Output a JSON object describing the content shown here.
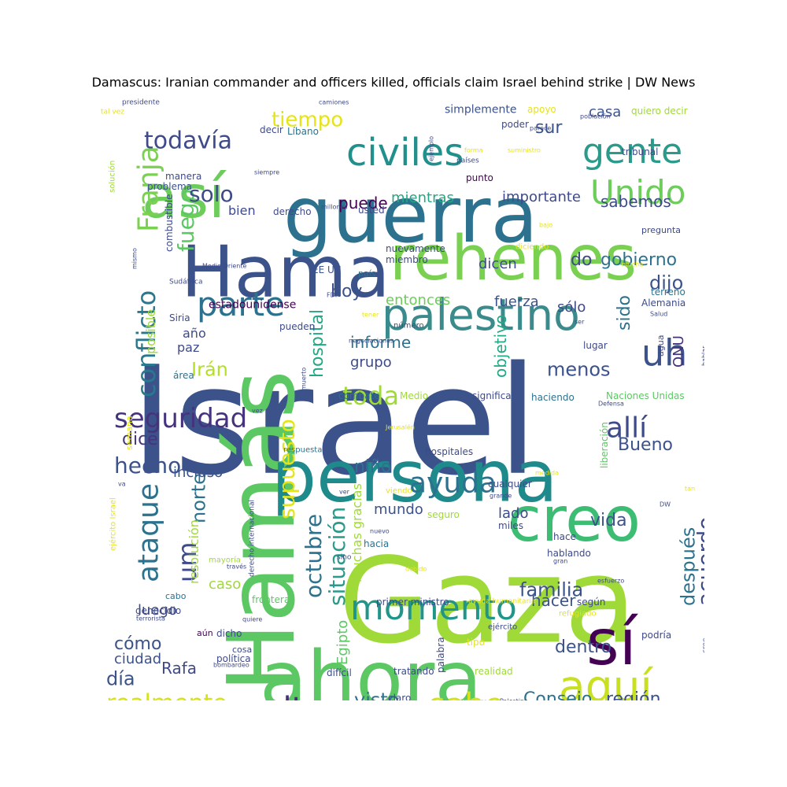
{
  "title": "Damascus: Iranian commander and officers killed, officials claim Israel behind strike | DW News",
  "palette": [
    "#440154",
    "#472c7a",
    "#3b528b",
    "#2c728e",
    "#21908d",
    "#27ad81",
    "#5cc863",
    "#aadc32",
    "#fde725"
  ],
  "words": [
    {
      "text": "Israel",
      "c": "#3b528b"
    },
    {
      "text": "Gaza",
      "c": "#a0da39"
    },
    {
      "text": "Hamás",
      "c": "#5cc863"
    },
    {
      "text": "ahora",
      "c": "#5cc863"
    },
    {
      "text": "guerra",
      "c": "#2c728e"
    },
    {
      "text": "Hama",
      "c": "#3b528b"
    },
    {
      "text": "rehenes",
      "c": "#7ad151"
    },
    {
      "text": "persona",
      "c": "#1f8a8b"
    },
    {
      "text": "así",
      "c": "#6ccd5a"
    },
    {
      "text": "creo",
      "c": "#3dbc74"
    },
    {
      "text": "sí",
      "c": "#440154"
    },
    {
      "text": "aquí",
      "c": "#c8e020"
    },
    {
      "text": "palestino",
      "c": "#3b8b8c"
    },
    {
      "text": "civiles",
      "c": "#21908d"
    },
    {
      "text": "gente",
      "c": "#2a9a8a"
    },
    {
      "text": "Unido",
      "c": "#6ccd5a"
    },
    {
      "text": "parte",
      "c": "#2c728e"
    },
    {
      "text": "momento",
      "c": "#22958a"
    },
    {
      "text": "Franja",
      "c": "#7ad151"
    },
    {
      "text": "todavía",
      "c": "#3e4a89"
    },
    {
      "text": "seguridad",
      "c": "#46337e"
    },
    {
      "text": "alto",
      "c": "#472c7a"
    },
    {
      "text": "sabe",
      "c": "#d5e21a"
    },
    {
      "text": "uh",
      "c": "#3b528b"
    },
    {
      "text": "allí",
      "c": "#3e4a89"
    },
    {
      "text": "ayuda",
      "c": "#2c728e"
    },
    {
      "text": "ataque",
      "c": "#2c728e"
    },
    {
      "text": "conflicto",
      "c": "#2a788e"
    },
    {
      "text": "toda",
      "c": "#a0da39"
    },
    {
      "text": "realmente",
      "c": "#d8e219"
    },
    {
      "text": "tiempo",
      "c": "#e5e419"
    },
    {
      "text": "fuego",
      "c": "#5cc863"
    },
    {
      "text": "solo",
      "c": "#3e4a89"
    },
    {
      "text": "hecho",
      "c": "#3b528b"
    },
    {
      "text": "um",
      "c": "#3e4a89"
    },
    {
      "text": "octubre",
      "c": "#2c728e"
    },
    {
      "text": "situación",
      "c": "#2a9a8a"
    },
    {
      "text": "supuesto",
      "c": "#e5e419"
    },
    {
      "text": "acuerdo",
      "c": "#3e4a89"
    },
    {
      "text": "familia",
      "c": "#3b528b"
    },
    {
      "text": "Consejo",
      "c": "#2c728e"
    },
    {
      "text": "región",
      "c": "#3b528b"
    },
    {
      "text": "Bueno",
      "c": "#3b528b"
    },
    {
      "text": "dice",
      "c": "#46337e"
    },
    {
      "text": "hospital",
      "c": "#22a884"
    },
    {
      "text": "menos",
      "c": "#3b528b"
    },
    {
      "text": "norte",
      "c": "#2c728e"
    },
    {
      "text": "Irán",
      "c": "#b5de2b"
    },
    {
      "text": "visto",
      "c": "#2c728e"
    },
    {
      "text": "niño",
      "c": "#2c728e"
    },
    {
      "text": "dijo",
      "c": "#3b528b"
    },
    {
      "text": "gobierno",
      "c": "#2c728e"
    },
    {
      "text": "do",
      "c": "#3e4a89"
    },
    {
      "text": "hoy",
      "c": "#3b528b"
    },
    {
      "text": "sur",
      "c": "#3b528b"
    },
    {
      "text": "casa",
      "c": "#3b528b"
    },
    {
      "text": "puede",
      "c": "#440154"
    },
    {
      "text": "sabemos",
      "c": "#3e4a89"
    },
    {
      "text": "importante",
      "c": "#3e4a89"
    },
    {
      "text": "mientras",
      "c": "#22a884"
    },
    {
      "text": "dicen",
      "c": "#3e4a89"
    },
    {
      "text": "entonces",
      "c": "#6ccd5a"
    },
    {
      "text": "fuerza",
      "c": "#3b528b"
    },
    {
      "text": "sólo",
      "c": "#3e4a89"
    },
    {
      "text": "sido",
      "c": "#2c728e"
    },
    {
      "text": "informe",
      "c": "#2c728e"
    },
    {
      "text": "grupo",
      "c": "#3e4a89"
    },
    {
      "text": "objetivo",
      "c": "#22a884"
    },
    {
      "text": "ONU",
      "c": "#46337e"
    },
    {
      "text": "después",
      "c": "#2c728e"
    },
    {
      "text": "cómo",
      "c": "#3b528b"
    },
    {
      "text": "ciudad",
      "c": "#3b528b"
    },
    {
      "text": "día",
      "c": "#3b528b"
    },
    {
      "text": "Rafa",
      "c": "#3e4a89"
    },
    {
      "text": "dentro",
      "c": "#3b528b"
    },
    {
      "text": "hacer",
      "c": "#3b528b"
    },
    {
      "text": "mundo",
      "c": "#3b528b"
    },
    {
      "text": "vida",
      "c": "#3b528b"
    },
    {
      "text": "lado",
      "c": "#3e4a89"
    },
    {
      "text": "caso",
      "c": "#a0da39"
    },
    {
      "text": "luego",
      "c": "#3e4a89"
    },
    {
      "text": "incluso",
      "c": "#3b528b"
    },
    {
      "text": "Egipto",
      "c": "#5cc863"
    },
    {
      "text": "muchas gracias",
      "c": "#a0da39"
    },
    {
      "text": "paz",
      "c": "#3e4a89"
    },
    {
      "text": "año",
      "c": "#3e4a89"
    },
    {
      "text": "bien",
      "c": "#3e4a89"
    },
    {
      "text": "posible",
      "c": "#a0da39"
    },
    {
      "text": "resolución",
      "c": "#a0da39"
    },
    {
      "text": "estadounidense",
      "c": "#440154"
    },
    {
      "text": "mientras",
      "c": "#22a884"
    },
    {
      "text": "nuevamente",
      "c": "#3e4a89"
    },
    {
      "text": "miembro",
      "c": "#3e4a89"
    },
    {
      "text": "EE UU",
      "c": "#3b528b"
    },
    {
      "text": "país",
      "c": "#2c728e"
    },
    {
      "text": "simplemente",
      "c": "#3b528b"
    },
    {
      "text": "apoyo",
      "c": "#e5e419"
    },
    {
      "text": "quiero decir",
      "c": "#a0da39"
    },
    {
      "text": "decir",
      "c": "#3e4a89"
    },
    {
      "text": "Líbano",
      "c": "#2c728e"
    },
    {
      "text": "poder",
      "c": "#3e4a89"
    },
    {
      "text": "tribunal",
      "c": "#3e4a89"
    },
    {
      "text": "manera",
      "c": "#3e4a89"
    },
    {
      "text": "problema",
      "c": "#3b528b"
    },
    {
      "text": "combustible",
      "c": "#3e4a89"
    },
    {
      "text": "usted",
      "c": "#3e4a89"
    },
    {
      "text": "punto",
      "c": "#440154"
    },
    {
      "text": "pregunta",
      "c": "#3e4a89"
    },
    {
      "text": "Alemania",
      "c": "#3e4a89"
    },
    {
      "text": "terreno",
      "c": "#2c728e"
    },
    {
      "text": "Siria",
      "c": "#3e4a89"
    },
    {
      "text": "pueden",
      "c": "#3e4a89"
    },
    {
      "text": "lugar",
      "c": "#3e4a89"
    },
    {
      "text": "agua",
      "c": "#3e4a89"
    },
    {
      "text": "área",
      "c": "#2c728e"
    },
    {
      "text": "combate",
      "c": "#2c728e"
    },
    {
      "text": "Medio",
      "c": "#a0da39"
    },
    {
      "text": "significa",
      "c": "#3e4a89"
    },
    {
      "text": "haciendo",
      "c": "#2c728e"
    },
    {
      "text": "Naciones Unidas",
      "c": "#5cc863"
    },
    {
      "text": "semana",
      "c": "#e5e419"
    },
    {
      "text": "respuesta",
      "c": "#2c728e"
    },
    {
      "text": "hospitales",
      "c": "#3e4a89"
    },
    {
      "text": "cualquier",
      "c": "#3e4a89"
    },
    {
      "text": "liberación",
      "c": "#5cc863"
    },
    {
      "text": "seguro",
      "c": "#a0da39"
    },
    {
      "text": "miles",
      "c": "#3e4a89"
    },
    {
      "text": "hace",
      "c": "#3e4a89"
    },
    {
      "text": "hacia",
      "c": "#2c728e"
    },
    {
      "text": "hablando",
      "c": "#3e4a89"
    },
    {
      "text": "según",
      "c": "#3e4a89"
    },
    {
      "text": "frontera",
      "c": "#5cc863"
    },
    {
      "text": "primer ministro",
      "c": "#3e4a89"
    },
    {
      "text": "genocidio",
      "c": "#3e4a89"
    },
    {
      "text": "cabo",
      "c": "#2c728e"
    },
    {
      "text": "mayoría",
      "c": "#a0da39"
    },
    {
      "text": "aún",
      "c": "#440154"
    },
    {
      "text": "dicho",
      "c": "#3e4a89"
    },
    {
      "text": "política",
      "c": "#3e4a89"
    },
    {
      "text": "cosa",
      "c": "#3e4a89"
    },
    {
      "text": "palabra",
      "c": "#3e4a89"
    },
    {
      "text": "tipo",
      "c": "#e5e419"
    },
    {
      "text": "difícil",
      "c": "#3e4a89"
    },
    {
      "text": "tratando",
      "c": "#3e4a89"
    },
    {
      "text": "realidad",
      "c": "#a0da39"
    },
    {
      "text": "claro",
      "c": "#3e4a89"
    },
    {
      "text": "podría",
      "c": "#3e4a89"
    },
    {
      "text": "refugiado",
      "c": "#e5e419"
    },
    {
      "text": "ejército",
      "c": "#3e4a89"
    },
    {
      "text": "ayuda humanitaria",
      "c": "#e5e419"
    },
    {
      "text": "presidente",
      "c": "#3e4a89"
    },
    {
      "text": "tal vez",
      "c": "#e5e419"
    },
    {
      "text": "camiones",
      "c": "#3e4a89"
    },
    {
      "text": "población",
      "c": "#3e4a89"
    },
    {
      "text": "parece",
      "c": "#3e4a89"
    },
    {
      "text": "suministro",
      "c": "#e5e419"
    },
    {
      "text": "forma",
      "c": "#e5e419"
    },
    {
      "text": "países",
      "c": "#3e4a89"
    },
    {
      "text": "ejemplo",
      "c": "#3e4a89"
    },
    {
      "text": "siempre",
      "c": "#3e4a89"
    },
    {
      "text": "solución",
      "c": "#a0da39"
    },
    {
      "text": "millones",
      "c": "#3e4a89"
    },
    {
      "text": "derecho",
      "c": "#3e4a89"
    },
    {
      "text": "bajo",
      "c": "#e5e419"
    },
    {
      "text": "diciendo",
      "c": "#e5e419"
    },
    {
      "text": "mucha",
      "c": "#e5e419"
    },
    {
      "text": "Medio Oriente",
      "c": "#3e4a89"
    },
    {
      "text": "mismo",
      "c": "#3e4a89"
    },
    {
      "text": "Sudáfrica",
      "c": "#3e4a89"
    },
    {
      "text": "FDI",
      "c": "#3e4a89"
    },
    {
      "text": "tener",
      "c": "#e5e419"
    },
    {
      "text": "número",
      "c": "#3e4a89"
    },
    {
      "text": "negociaciones",
      "c": "#3e4a89"
    },
    {
      "text": "muerto",
      "c": "#3e4a89"
    },
    {
      "text": "ser",
      "c": "#3e4a89"
    },
    {
      "text": "Salud",
      "c": "#3e4a89"
    },
    {
      "text": "habiar",
      "c": "#3e4a89"
    },
    {
      "text": "hablar",
      "c": "#3e4a89"
    },
    {
      "text": "Defensa",
      "c": "#3e4a89"
    },
    {
      "text": "vez",
      "c": "#3e4a89"
    },
    {
      "text": "Jerusalén",
      "c": "#e5e419"
    },
    {
      "text": "ver",
      "c": "#3e4a89"
    },
    {
      "text": "medida",
      "c": "#e5e419"
    },
    {
      "text": "derecho internacional",
      "c": "#3e4a89"
    },
    {
      "text": "ejército Israel",
      "c": "#e5e419"
    },
    {
      "text": "viendo",
      "c": "#e5e419"
    },
    {
      "text": "grande",
      "c": "#3e4a89"
    },
    {
      "text": "tan",
      "c": "#e5e419"
    },
    {
      "text": "DW",
      "c": "#3e4a89"
    },
    {
      "text": "nuevo",
      "c": "#3e4a89"
    },
    {
      "text": "gran",
      "c": "#3e4a89"
    },
    {
      "text": "sino",
      "c": "#3e4a89"
    },
    {
      "text": "través",
      "c": "#3e4a89"
    },
    {
      "text": "debido",
      "c": "#e5e419"
    },
    {
      "text": "esfuerzo",
      "c": "#3e4a89"
    },
    {
      "text": "terrorista",
      "c": "#3e4a89"
    },
    {
      "text": "quiere",
      "c": "#3e4a89"
    },
    {
      "text": "cree",
      "c": "#3e4a89"
    },
    {
      "text": "bombardeo",
      "c": "#3e4a89"
    },
    {
      "text": "alrededor",
      "c": "#e5e419"
    },
    {
      "text": "Palestina",
      "c": "#3e4a89"
    },
    {
      "text": "va",
      "c": "#3e4a89"
    }
  ]
}
